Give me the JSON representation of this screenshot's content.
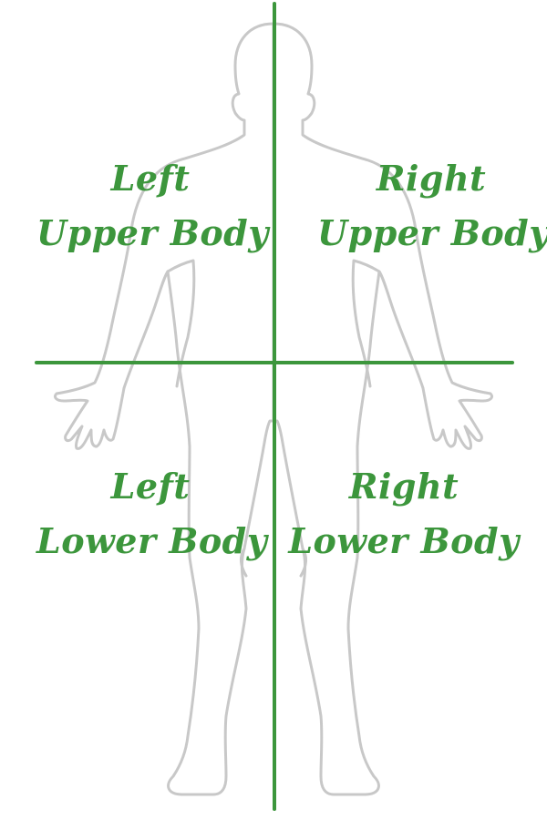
{
  "colors": {
    "label": "#3c963c",
    "divider": "#3c963c",
    "outline": "#c8c8c8",
    "background": "#ffffff"
  },
  "quadrants": {
    "left_upper": {
      "line1": "Left",
      "line2": "Upper Body"
    },
    "right_upper": {
      "line1": "Right",
      "line2": "Upper Body"
    },
    "left_lower": {
      "line1": "Left",
      "line2": "Lower Body"
    },
    "right_lower": {
      "line1": "Right",
      "line2": "Lower Body"
    }
  }
}
